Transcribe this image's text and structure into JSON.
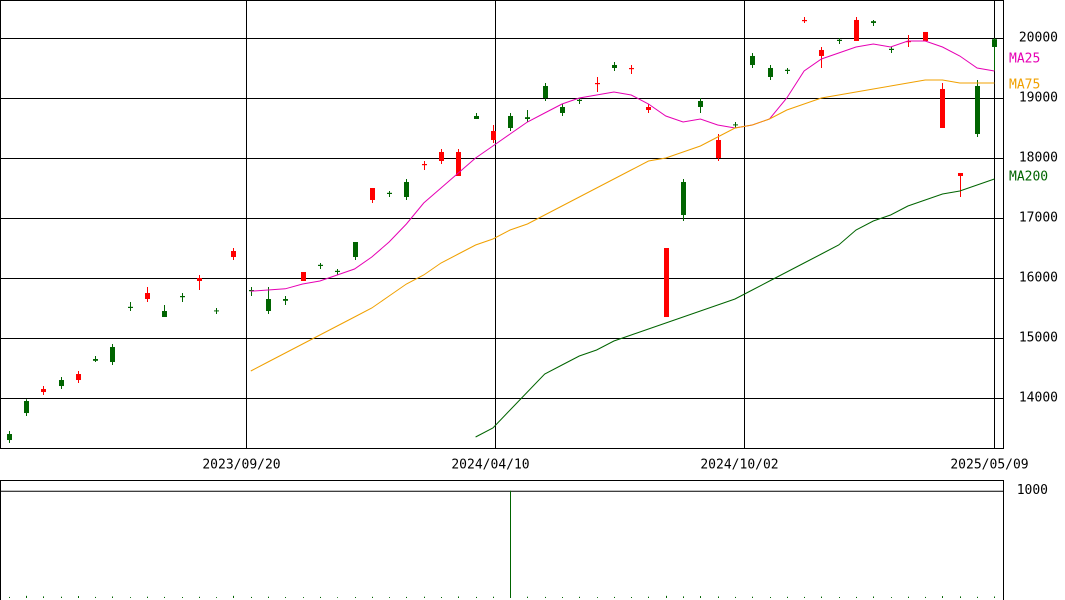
{
  "chart_data": {
    "type": "candlestick",
    "xlim": [
      -0.5,
      57.5
    ],
    "xticks": [
      {
        "value": 13.72,
        "label": "2023/09/20"
      },
      {
        "value": 28.1,
        "label": "2024/04/10"
      },
      {
        "value": 42.55,
        "label": "2024/10/02"
      },
      {
        "value": 57.0,
        "label": "2025/05/09"
      }
    ],
    "ylim": [
      13167,
      20633
    ],
    "yticks": [
      14000,
      15000,
      16000,
      17000,
      18000,
      19000,
      20000
    ],
    "grid": true,
    "up_color": "#006400",
    "down_color": "#ff0000",
    "open": [
      13300,
      13750,
      14150,
      14200,
      14400,
      14620,
      14600,
      15500,
      15750,
      15350,
      15680,
      16000,
      15450,
      16450,
      15780,
      15450,
      15620,
      16100,
      16200,
      16100,
      16350,
      17500,
      17400,
      17350,
      17900,
      18100,
      18100,
      18650,
      18450,
      18500,
      18650,
      19000,
      18750,
      18950,
      19250,
      19500,
      19500,
      18850,
      16500,
      17050,
      18850,
      18300,
      18550,
      19550,
      19350,
      19450,
      20300,
      19800,
      19950,
      20300,
      20250,
      19800,
      19950,
      20100,
      19150,
      17750,
      18400,
      19850
    ],
    "high": [
      13450,
      13980,
      14200,
      14350,
      14450,
      14700,
      14900,
      15600,
      15850,
      15550,
      15750,
      16050,
      15500,
      16500,
      15850,
      15850,
      15700,
      16100,
      16250,
      16150,
      16600,
      17500,
      17450,
      17650,
      17950,
      18150,
      18150,
      18750,
      18550,
      18750,
      18800,
      19250,
      18900,
      19000,
      19350,
      19600,
      19550,
      18900,
      16500,
      17650,
      19000,
      18400,
      18600,
      19750,
      19550,
      19500,
      20350,
      19850,
      20000,
      20350,
      20300,
      19850,
      20050,
      20100,
      19250,
      17750,
      19300,
      20000
    ],
    "low": [
      13250,
      13700,
      14050,
      14150,
      14250,
      14600,
      14550,
      15450,
      15600,
      15350,
      15600,
      15800,
      15400,
      16300,
      15700,
      15400,
      15550,
      15950,
      16150,
      16050,
      16300,
      17250,
      17350,
      17300,
      17800,
      17900,
      17700,
      18650,
      18250,
      18450,
      18600,
      18950,
      18700,
      18900,
      19100,
      19450,
      19400,
      18750,
      15350,
      16950,
      18750,
      17950,
      18500,
      19500,
      19300,
      19400,
      20250,
      19500,
      19900,
      19950,
      20200,
      19750,
      19850,
      19950,
      18500,
      17350,
      18350,
      19450
    ],
    "close": [
      13400,
      13950,
      14100,
      14300,
      14300,
      14650,
      14850,
      15520,
      15650,
      15450,
      15700,
      15950,
      15460,
      16350,
      15800,
      15650,
      15650,
      15950,
      16220,
      16120,
      16600,
      17300,
      17420,
      17600,
      17880,
      17950,
      17700,
      18700,
      18300,
      18700,
      18680,
      19200,
      18850,
      18970,
      19230,
      19550,
      19480,
      18800,
      15350,
      17600,
      18950,
      18000,
      18560,
      19700,
      19500,
      19470,
      20280,
      19700,
      19970,
      19950,
      20280,
      19820,
      19930,
      19950,
      18500,
      17700,
      19200,
      19980
    ],
    "series": [
      {
        "name": "MA25",
        "color": "#e600b4",
        "values": [
          null,
          null,
          null,
          null,
          null,
          null,
          null,
          null,
          null,
          null,
          null,
          null,
          null,
          null,
          15780,
          15800,
          15820,
          15900,
          15950,
          16050,
          16150,
          16350,
          16600,
          16900,
          17250,
          17500,
          17750,
          18000,
          18200,
          18400,
          18600,
          18750,
          18900,
          19000,
          19050,
          19100,
          19050,
          18900,
          18700,
          18600,
          18650,
          18550,
          18500,
          18550,
          18650,
          19000,
          19450,
          19650,
          19750,
          19850,
          19900,
          19850,
          19950,
          19950,
          19850,
          19700,
          19500,
          19450
        ]
      },
      {
        "name": "MA75",
        "color": "#f0a000",
        "values": [
          null,
          null,
          null,
          null,
          null,
          null,
          null,
          null,
          null,
          null,
          null,
          null,
          null,
          null,
          14450,
          14600,
          14750,
          14900,
          15050,
          15200,
          15350,
          15500,
          15700,
          15900,
          16050,
          16250,
          16400,
          16550,
          16650,
          16800,
          16900,
          17050,
          17200,
          17350,
          17500,
          17650,
          17800,
          17950,
          18000,
          18100,
          18200,
          18350,
          18500,
          18550,
          18650,
          18800,
          18900,
          19000,
          19050,
          19100,
          19150,
          19200,
          19250,
          19300,
          19300,
          19250,
          19250,
          19250
        ]
      },
      {
        "name": "MA200",
        "color": "#006400",
        "values": [
          null,
          null,
          null,
          null,
          null,
          null,
          null,
          null,
          null,
          null,
          null,
          null,
          null,
          null,
          null,
          null,
          null,
          null,
          null,
          null,
          null,
          null,
          null,
          null,
          null,
          null,
          null,
          13350,
          13500,
          13800,
          14100,
          14400,
          14550,
          14700,
          14800,
          14950,
          15050,
          15150,
          15250,
          15350,
          15450,
          15550,
          15650,
          15800,
          15950,
          16100,
          16250,
          16400,
          16550,
          16800,
          16950,
          17050,
          17200,
          17300,
          17400,
          17450,
          17550,
          17650
        ]
      }
    ],
    "volume": {
      "color": "#006400",
      "ylim": [
        0,
        1100
      ],
      "yticks": [
        1000
      ],
      "values": [
        10,
        20,
        15,
        12,
        18,
        10,
        14,
        8,
        12,
        10,
        9,
        11,
        8,
        20,
        10,
        12,
        9,
        8,
        10,
        7,
        9,
        11,
        8,
        10,
        12,
        9,
        14,
        10,
        12,
        1000,
        12,
        10,
        9,
        11,
        8,
        10,
        9,
        12,
        20,
        15,
        18,
        14,
        10,
        12,
        9,
        11,
        10,
        13,
        9,
        10,
        14,
        8,
        12,
        10,
        18,
        15,
        11,
        14
      ]
    }
  }
}
